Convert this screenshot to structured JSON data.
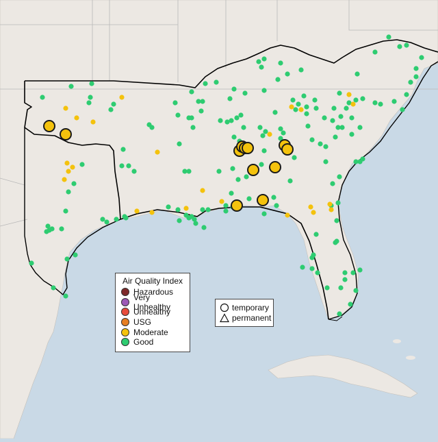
{
  "legend": {
    "title": "Air Quality Index",
    "categories": [
      {
        "label": "Hazardous",
        "color": "#7e2a2a"
      },
      {
        "label": "Very Unhealthy",
        "color": "#9b59b6"
      },
      {
        "label": "Unhealthy",
        "color": "#e74c3c"
      },
      {
        "label": "USG",
        "color": "#e67e22"
      },
      {
        "label": "Moderate",
        "color": "#f4c20d"
      },
      {
        "label": "Good",
        "color": "#2ecc71"
      }
    ]
  },
  "monitor_types": {
    "temporary": {
      "label": "temporary",
      "icon": "circle-icon"
    },
    "permanent": {
      "label": "permanent",
      "icon": "triangle-icon"
    }
  },
  "colors": {
    "ocean": "#c9d9e6",
    "land": "#ece8e3",
    "region_outline": "#000000",
    "boundary": "#b8b8b8"
  }
}
